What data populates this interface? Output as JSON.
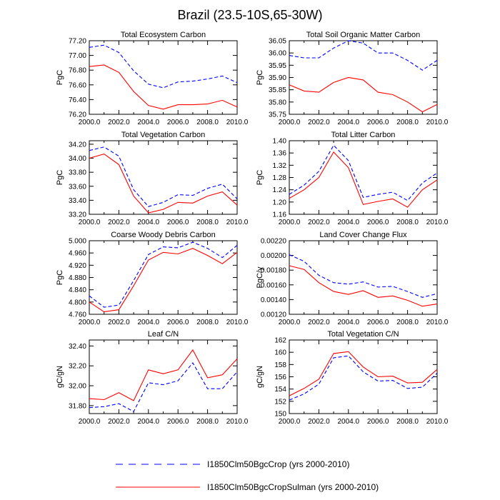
{
  "figure": {
    "title": "Brazil (23.5-10S,65-30W)"
  },
  "legend": [
    {
      "label": "I1850Clm50BgcCrop (yrs 2000-2010)",
      "color": "#0000ff",
      "dash": "dashed"
    },
    {
      "label": "I1850Clm50BgcCropSulman (yrs 2000-2010)",
      "color": "#ff0000",
      "dash": "solid"
    }
  ],
  "chart_data": [
    {
      "type": "line",
      "title": "Total Ecosystem Carbon",
      "ylabel": "PgC",
      "x": [
        2000,
        2001,
        2002,
        2003,
        2004,
        2005,
        2006,
        2007,
        2008,
        2009,
        2010
      ],
      "xticks": [
        "2000.0",
        "2002.0",
        "2004.0",
        "2006.0",
        "2008.0",
        "2010.0"
      ],
      "yticks": [
        "76.20",
        "76.40",
        "76.60",
        "76.80",
        "77.00",
        "77.20"
      ],
      "ylim": [
        76.2,
        77.2
      ],
      "series": [
        {
          "values": [
            77.11,
            77.14,
            77.04,
            76.79,
            76.61,
            76.56,
            76.64,
            76.65,
            76.68,
            76.72,
            76.63
          ]
        },
        {
          "values": [
            76.85,
            76.87,
            76.77,
            76.51,
            76.32,
            76.27,
            76.33,
            76.33,
            76.34,
            76.39,
            76.3
          ]
        }
      ]
    },
    {
      "type": "line",
      "title": "Total Soil Organic Matter Carbon",
      "ylabel": "PgC",
      "x": [
        2000,
        2001,
        2002,
        2003,
        2004,
        2005,
        2006,
        2007,
        2008,
        2009,
        2010
      ],
      "xticks": [
        "2000.0",
        "2002.0",
        "2004.0",
        "2006.0",
        "2008.0",
        "2010.0"
      ],
      "yticks": [
        "35.75",
        "35.80",
        "35.85",
        "35.90",
        "35.95",
        "36.00",
        "36.05"
      ],
      "ylim": [
        35.75,
        36.05
      ],
      "series": [
        {
          "values": [
            35.99,
            35.98,
            35.98,
            36.02,
            36.05,
            36.04,
            36.0,
            36.0,
            35.97,
            35.93,
            35.97
          ]
        },
        {
          "values": [
            35.87,
            35.845,
            35.84,
            35.88,
            35.9,
            35.89,
            35.84,
            35.83,
            35.8,
            35.76,
            35.79
          ]
        }
      ]
    },
    {
      "type": "line",
      "title": "Total Vegetation Carbon",
      "ylabel": "PgC",
      "x": [
        2000,
        2001,
        2002,
        2003,
        2004,
        2005,
        2006,
        2007,
        2008,
        2009,
        2010
      ],
      "xticks": [
        "2000.0",
        "2002.0",
        "2004.0",
        "2006.0",
        "2008.0",
        "2010.0"
      ],
      "yticks": [
        "33.20",
        "33.40",
        "33.60",
        "33.80",
        "34.00",
        "34.20"
      ],
      "ylim": [
        33.2,
        34.25
      ],
      "series": [
        {
          "values": [
            34.11,
            34.16,
            34.03,
            33.55,
            33.31,
            33.37,
            33.48,
            33.47,
            33.57,
            33.63,
            33.42
          ]
        },
        {
          "values": [
            34.0,
            34.06,
            33.91,
            33.46,
            33.22,
            33.27,
            33.37,
            33.36,
            33.46,
            33.52,
            33.33
          ]
        }
      ]
    },
    {
      "type": "line",
      "title": "Total Litter Carbon",
      "ylabel": "PgC",
      "x": [
        2000,
        2001,
        2002,
        2003,
        2004,
        2005,
        2006,
        2007,
        2008,
        2009,
        2010
      ],
      "xticks": [
        "2000.0",
        "2002.0",
        "2004.0",
        "2006.0",
        "2008.0",
        "2010.0"
      ],
      "yticks": [
        "1.16",
        "1.20",
        "1.24",
        "1.28",
        "1.32",
        "1.36",
        "1.40"
      ],
      "ylim": [
        1.16,
        1.4
      ],
      "series": [
        {
          "values": [
            1.225,
            1.255,
            1.3,
            1.385,
            1.335,
            1.215,
            1.225,
            1.232,
            1.205,
            1.262,
            1.295
          ]
        },
        {
          "values": [
            1.212,
            1.24,
            1.28,
            1.363,
            1.312,
            1.192,
            1.202,
            1.21,
            1.183,
            1.24,
            1.272
          ]
        }
      ]
    },
    {
      "type": "line",
      "title": "Coarse Woody Debris Carbon",
      "ylabel": "PgC",
      "x": [
        2000,
        2001,
        2002,
        2003,
        2004,
        2005,
        2006,
        2007,
        2008,
        2009,
        2010
      ],
      "xticks": [
        "2000.0",
        "2002.0",
        "2004.0",
        "2006.0",
        "2008.0",
        "2010.0"
      ],
      "yticks": [
        "4.760",
        "4.800",
        "4.840",
        "4.880",
        "4.920",
        "4.960",
        "5.000"
      ],
      "ylim": [
        4.76,
        5.0
      ],
      "series": [
        {
          "values": [
            4.82,
            4.783,
            4.79,
            4.87,
            4.955,
            4.98,
            4.977,
            4.995,
            4.975,
            4.945,
            4.985
          ]
        },
        {
          "values": [
            4.8,
            4.768,
            4.775,
            4.853,
            4.937,
            4.962,
            4.957,
            4.975,
            4.952,
            4.925,
            4.962
          ]
        }
      ]
    },
    {
      "type": "line",
      "title": "Land Cover Change Flux",
      "ylabel": "PgC/y",
      "x": [
        2000,
        2001,
        2002,
        2003,
        2004,
        2005,
        2006,
        2007,
        2008,
        2009,
        2010
      ],
      "xticks": [
        "2000.0",
        "2002.0",
        "2004.0",
        "2006.0",
        "2008.0",
        "2010.0"
      ],
      "yticks": [
        "0.00120",
        "0.00140",
        "0.00160",
        "0.00180",
        "0.00200",
        "0.00220"
      ],
      "ylim": [
        0.0012,
        0.0022
      ],
      "series": [
        {
          "values": [
            0.00201,
            0.00192,
            0.00173,
            0.00163,
            0.00161,
            0.00164,
            0.00157,
            0.00158,
            0.00151,
            0.00143,
            0.00148
          ]
        },
        {
          "values": [
            0.00186,
            0.00181,
            0.00163,
            0.00151,
            0.00147,
            0.00152,
            0.00143,
            0.00145,
            0.00139,
            0.00131,
            0.00134
          ]
        }
      ]
    },
    {
      "type": "line",
      "title": "Leaf C/N",
      "ylabel": "gC/gN",
      "x": [
        2000,
        2001,
        2002,
        2003,
        2004,
        2005,
        2006,
        2007,
        2008,
        2009,
        2010
      ],
      "xticks": [
        "2000.0",
        "2002.0",
        "2004.0",
        "2006.0",
        "2008.0",
        "2010.0"
      ],
      "yticks": [
        "31.80",
        "32.00",
        "32.20",
        "32.40"
      ],
      "ylim": [
        31.72,
        32.46
      ],
      "series": [
        {
          "values": [
            31.78,
            31.79,
            31.82,
            31.74,
            32.03,
            32.01,
            32.05,
            32.23,
            31.97,
            31.97,
            32.14
          ]
        },
        {
          "values": [
            31.87,
            31.86,
            31.93,
            31.85,
            32.16,
            32.12,
            32.16,
            32.36,
            32.08,
            32.11,
            32.27
          ]
        }
      ]
    },
    {
      "type": "line",
      "title": "Total Vegetation C/N",
      "ylabel": "gC/gN",
      "x": [
        2000,
        2001,
        2002,
        2003,
        2004,
        2005,
        2006,
        2007,
        2008,
        2009,
        2010
      ],
      "xticks": [
        "2000.0",
        "2002.0",
        "2004.0",
        "2006.0",
        "2008.0",
        "2010.0"
      ],
      "yticks": [
        "150",
        "152",
        "154",
        "156",
        "158",
        "160",
        "162"
      ],
      "ylim": [
        150,
        162
      ],
      "series": [
        {
          "values": [
            152.2,
            153.2,
            154.8,
            159.1,
            159.4,
            156.8,
            155.3,
            155.4,
            154.1,
            154.3,
            156.6
          ]
        },
        {
          "values": [
            152.9,
            154.1,
            155.6,
            159.8,
            160.1,
            157.6,
            156.0,
            156.1,
            155.0,
            155.1,
            157.2
          ]
        }
      ]
    }
  ]
}
